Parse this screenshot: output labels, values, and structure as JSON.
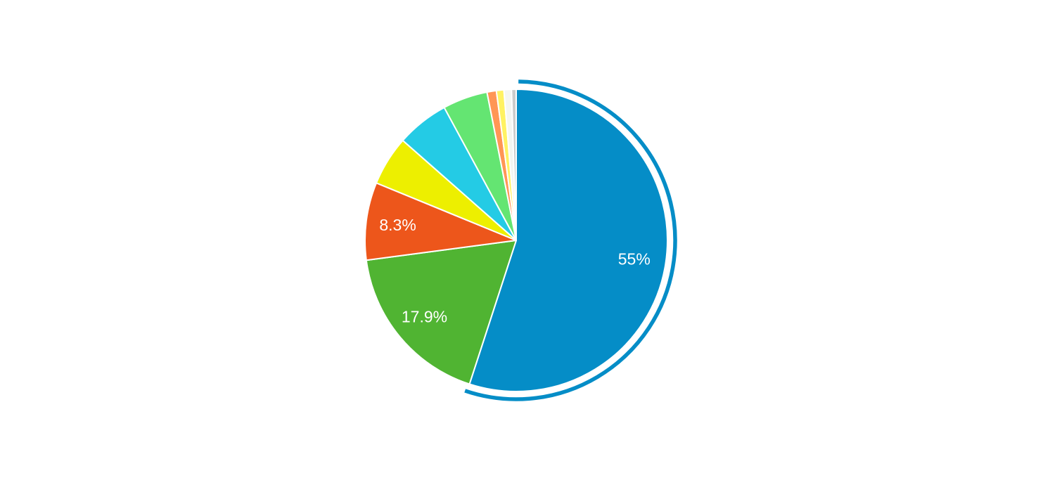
{
  "page": {
    "background_color": "#ffffff"
  },
  "chart_data": {
    "type": "pie",
    "title": "",
    "direction": "clockwise",
    "start_angle_deg": 0,
    "total": 100,
    "grid": false,
    "legend": "none",
    "label_color": "#ffffff",
    "separator_color": "#ffffff",
    "selection_ring": {
      "color": "#058dc7",
      "attached_to_slice": 1
    },
    "slices": [
      {
        "value": 55.0,
        "label": "55%",
        "color": "#058dc7",
        "selected": true
      },
      {
        "value": 17.9,
        "label": "17.9%",
        "color": "#50b432",
        "selected": false
      },
      {
        "value": 8.3,
        "label": "8.3%",
        "color": "#ed561b",
        "selected": false
      },
      {
        "value": 5.3,
        "label": "",
        "color": "#edef00",
        "selected": false
      },
      {
        "value": 5.6,
        "label": "",
        "color": "#24cbe5",
        "selected": false
      },
      {
        "value": 4.8,
        "label": "",
        "color": "#64e572",
        "selected": false
      },
      {
        "value": 1.0,
        "label": "",
        "color": "#ff9655",
        "selected": false
      },
      {
        "value": 0.8,
        "label": "",
        "color": "#fff263",
        "selected": false
      },
      {
        "value": 0.8,
        "label": "",
        "color": "#f4f6f2",
        "selected": false
      },
      {
        "value": 0.5,
        "label": "",
        "color": "#cccccc",
        "selected": false
      }
    ]
  }
}
